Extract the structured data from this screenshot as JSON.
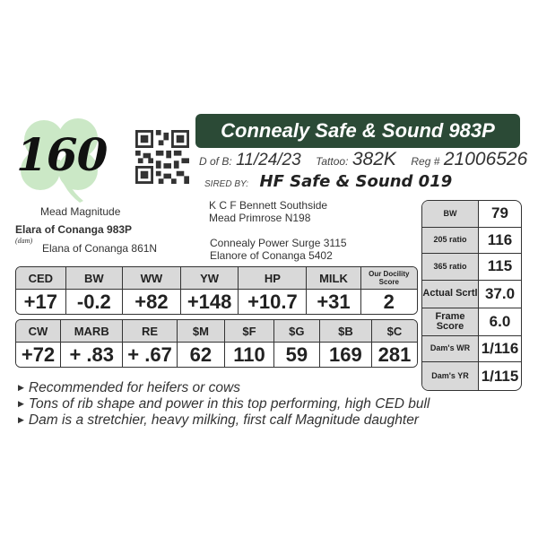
{
  "lot_number": "160",
  "title": "Connealy Safe & Sound 983P",
  "info": {
    "dob_label": "D of B:",
    "dob": "11/24/23",
    "tattoo_label": "Tattoo:",
    "tattoo": "382K",
    "reg_label": "Reg #",
    "reg": "21006526"
  },
  "sire": {
    "label": "SIRED BY:",
    "name": "HF Safe & Sound 019"
  },
  "pedigree": {
    "sire_sire": "K C F Bennett Southside",
    "sire_dam": "Mead Primrose N198",
    "dam_sire": "Mead Magnitude",
    "dam": "Elara of Conanga 983P",
    "dam_label": "(dam)",
    "dam_dam": "Elana of Conanga 861N",
    "dam_dam_sire": "Connealy Power Surge 3115",
    "dam_dam_dam": "Elanore of Conanga 5402"
  },
  "epd1": {
    "headers": [
      "CED",
      "BW",
      "WW",
      "YW",
      "HP",
      "MILK",
      "Our Docility Score"
    ],
    "values": [
      "+17",
      "-0.2",
      "+82",
      "+148",
      "+10.7",
      "+31",
      "2"
    ]
  },
  "epd2": {
    "headers": [
      "CW",
      "MARB",
      "RE",
      "$M",
      "$F",
      "$G",
      "$B",
      "$C"
    ],
    "values": [
      "+72",
      "+ .83",
      "+ .67",
      "62",
      "110",
      "59",
      "169",
      "281"
    ]
  },
  "side": [
    {
      "label": "BW",
      "value": "79"
    },
    {
      "label": "205 ratio",
      "value": "116"
    },
    {
      "label": "365 ratio",
      "value": "115"
    },
    {
      "label": "Actual Scrtl",
      "value": "37.0"
    },
    {
      "label": "Frame Score",
      "value": "6.0"
    },
    {
      "label": "Dam's WR",
      "value": "1/116"
    },
    {
      "label": "Dam's YR",
      "value": "1/115"
    }
  ],
  "bullets": [
    "Recommended for heifers or cows",
    "Tons of rib shape and power in this top performing, high CED bull",
    "Dam is a stretchier, heavy milking, first calf Magnitude daughter"
  ],
  "colors": {
    "title_bg": "#2b4a36",
    "shamrock": "#a8d5a0",
    "header_bg": "#d9d9d9"
  }
}
